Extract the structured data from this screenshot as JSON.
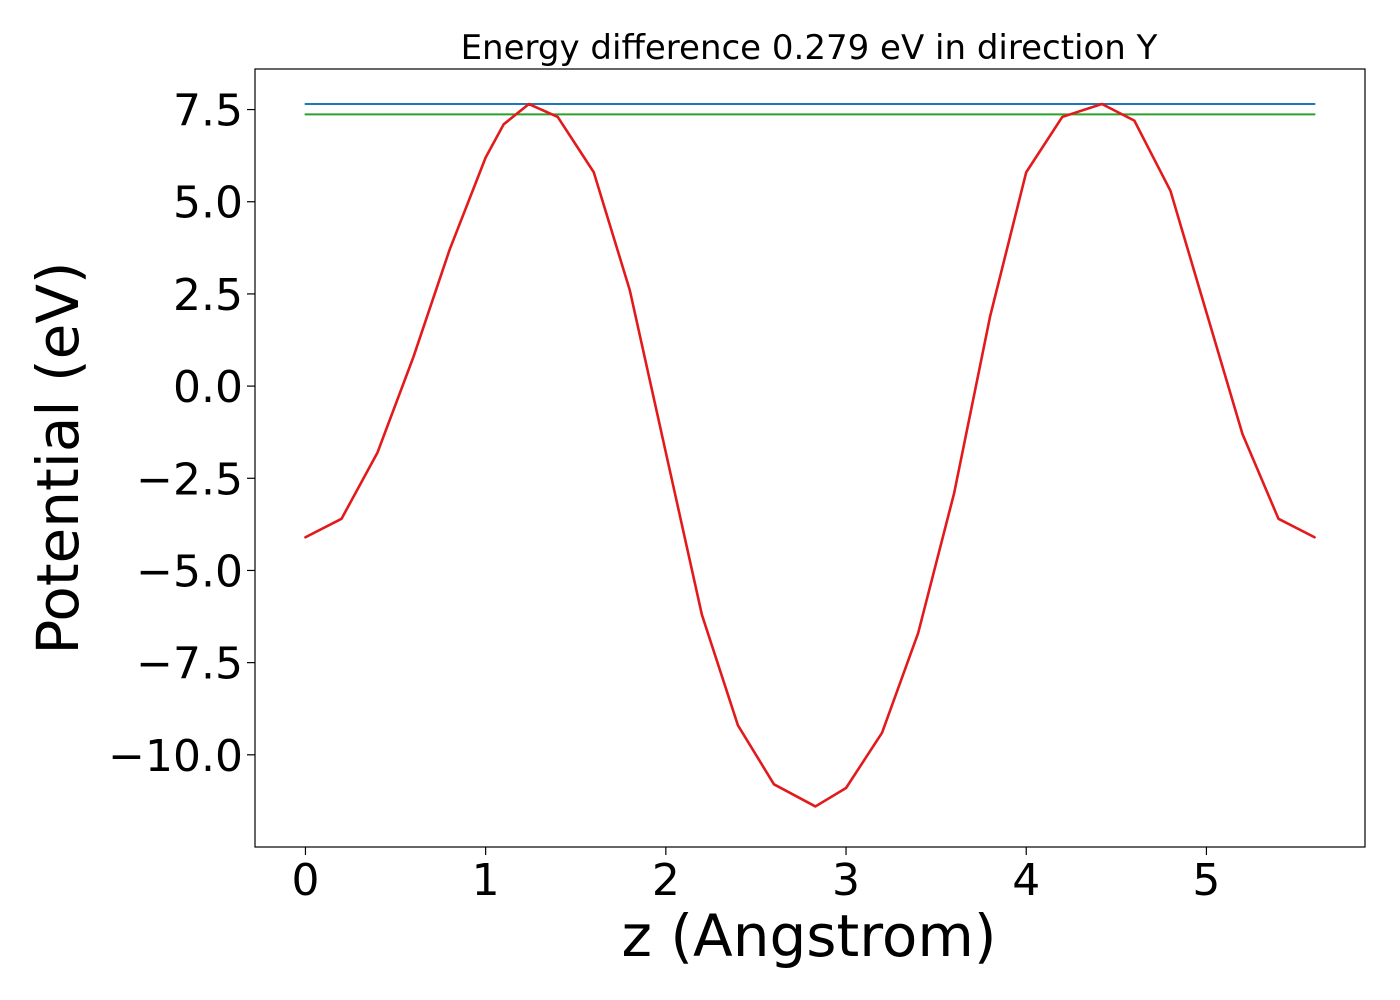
{
  "chart_data": {
    "type": "line",
    "title": "Energy difference 0.279 eV in direction Y",
    "xlabel": "z (Angstrom)",
    "ylabel": "Potential (eV)",
    "xlim": [
      -0.28,
      5.88
    ],
    "ylim": [
      -12.5,
      8.6
    ],
    "xticks": [
      0,
      1,
      2,
      3,
      4,
      5
    ],
    "xtick_labels": [
      "0",
      "1",
      "2",
      "3",
      "4",
      "5"
    ],
    "yticks": [
      7.5,
      5.0,
      2.5,
      0.0,
      -2.5,
      -5.0,
      -7.5,
      -10.0
    ],
    "ytick_labels": [
      "7.5",
      "5.0",
      "2.5",
      "0.0",
      "−2.5",
      "−5.0",
      "−7.5",
      "−10.0"
    ],
    "grid": false,
    "legend": "none",
    "series": [
      {
        "color": "#1f77b4",
        "kind": "hline",
        "x": [
          0,
          5.6
        ],
        "y": [
          7.65,
          7.65
        ]
      },
      {
        "color": "#2ca02c",
        "kind": "hline",
        "x": [
          0,
          5.6
        ],
        "y": [
          7.37,
          7.37
        ]
      },
      {
        "color": "#e31a1c",
        "kind": "curve",
        "x": [
          0.0,
          0.2,
          0.4,
          0.6,
          0.8,
          1.0,
          1.1,
          1.24,
          1.4,
          1.6,
          1.8,
          2.0,
          2.2,
          2.4,
          2.6,
          2.83,
          3.0,
          3.2,
          3.4,
          3.6,
          3.8,
          4.0,
          4.2,
          4.42,
          4.6,
          4.8,
          5.0,
          5.2,
          5.4,
          5.6
        ],
        "y": [
          -4.1,
          -3.6,
          -1.8,
          0.8,
          3.7,
          6.2,
          7.1,
          7.65,
          7.3,
          5.8,
          2.6,
          -1.8,
          -6.2,
          -9.2,
          -10.8,
          -11.4,
          -10.9,
          -9.4,
          -6.7,
          -2.9,
          1.9,
          5.8,
          7.3,
          7.65,
          7.2,
          5.3,
          2.0,
          -1.3,
          -3.6,
          -4.1
        ]
      }
    ]
  }
}
